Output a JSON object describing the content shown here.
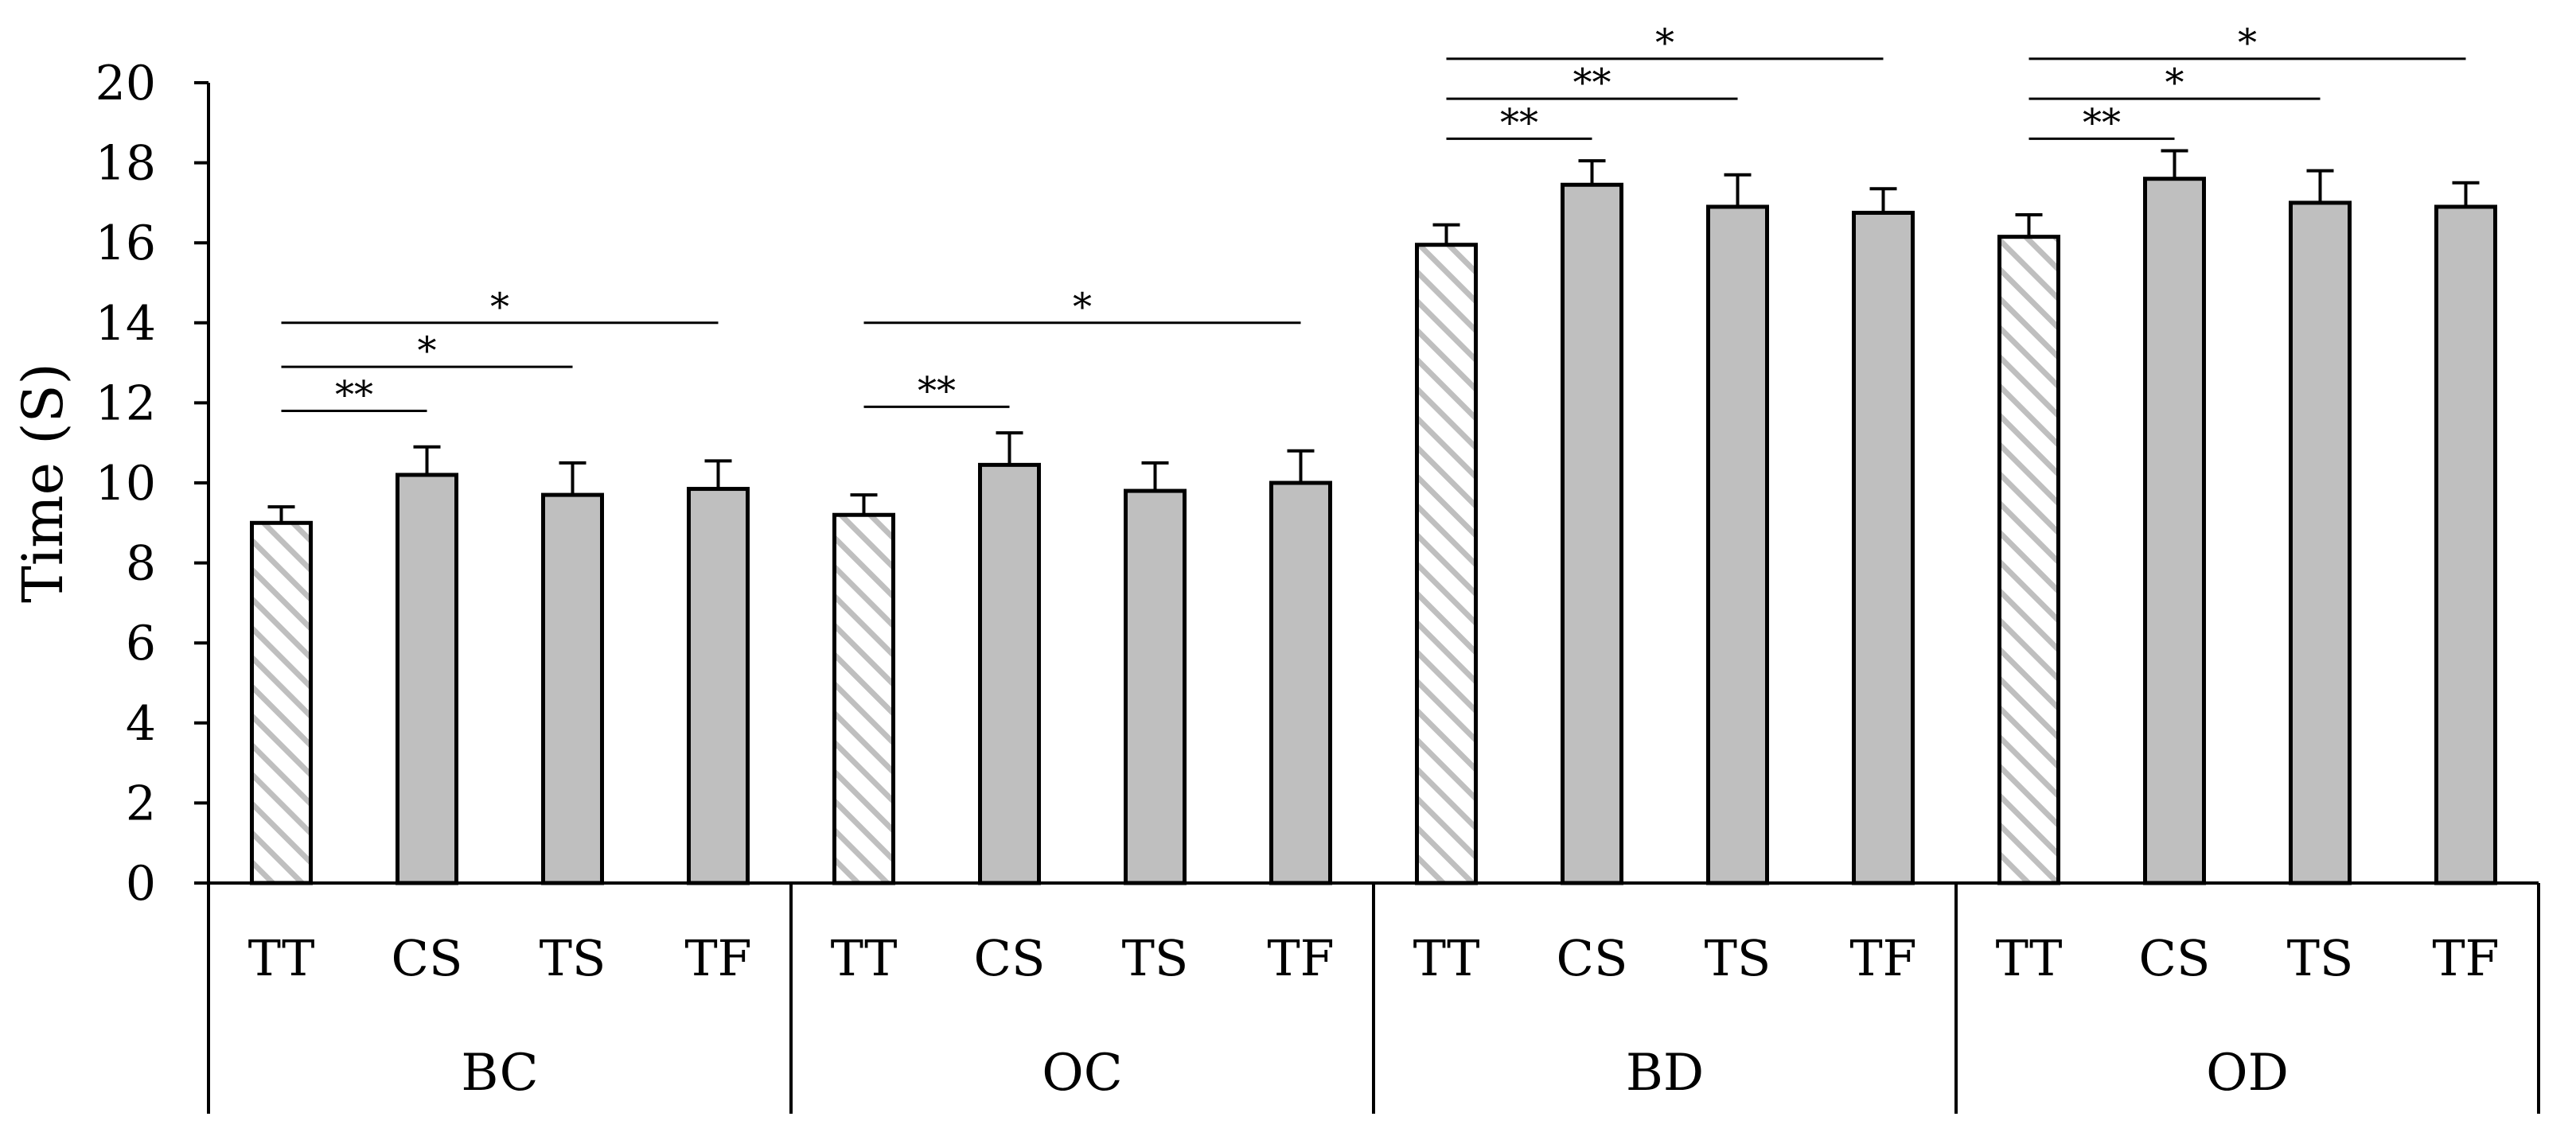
{
  "chart_data": {
    "type": "bar",
    "title": "",
    "xlabel": "",
    "ylabel": "Time (S)",
    "ylim": [
      0,
      20
    ],
    "yticks": [
      "0",
      "2",
      "4",
      "6",
      "8",
      "10",
      "12",
      "14",
      "16",
      "18",
      "20"
    ],
    "groups": [
      {
        "label": "BC",
        "bars": [
          {
            "label": "TT",
            "value": 9.0,
            "error": 0.4,
            "pattern": "hatched"
          },
          {
            "label": "CS",
            "value": 10.2,
            "error": 0.7,
            "pattern": "solid"
          },
          {
            "label": "TS",
            "value": 9.7,
            "error": 0.8,
            "pattern": "solid"
          },
          {
            "label": "TF",
            "value": 9.85,
            "error": 0.7,
            "pattern": "solid"
          }
        ],
        "significance": [
          {
            "from": "TT",
            "to": "CS",
            "y": 11.8,
            "mark": "**"
          },
          {
            "from": "TT",
            "to": "TS",
            "y": 12.9,
            "mark": "*"
          },
          {
            "from": "TT",
            "to": "TF",
            "y": 14.0,
            "mark": "*"
          }
        ]
      },
      {
        "label": "OC",
        "bars": [
          {
            "label": "TT",
            "value": 9.2,
            "error": 0.5,
            "pattern": "hatched"
          },
          {
            "label": "CS",
            "value": 10.45,
            "error": 0.8,
            "pattern": "solid"
          },
          {
            "label": "TS",
            "value": 9.8,
            "error": 0.7,
            "pattern": "solid"
          },
          {
            "label": "TF",
            "value": 10.0,
            "error": 0.8,
            "pattern": "solid"
          }
        ],
        "significance": [
          {
            "from": "TT",
            "to": "CS",
            "y": 11.9,
            "mark": "**"
          },
          {
            "from": "TT",
            "to": "TF",
            "y": 14.0,
            "mark": "*"
          }
        ]
      },
      {
        "label": "BD",
        "bars": [
          {
            "label": "TT",
            "value": 15.95,
            "error": 0.5,
            "pattern": "hatched"
          },
          {
            "label": "CS",
            "value": 17.45,
            "error": 0.6,
            "pattern": "solid"
          },
          {
            "label": "TS",
            "value": 16.9,
            "error": 0.8,
            "pattern": "solid"
          },
          {
            "label": "TF",
            "value": 16.75,
            "error": 0.6,
            "pattern": "solid"
          }
        ],
        "significance": [
          {
            "from": "TT",
            "to": "CS",
            "y": 18.6,
            "mark": "**"
          },
          {
            "from": "TT",
            "to": "TS",
            "y": 19.6,
            "mark": "**"
          },
          {
            "from": "TT",
            "to": "TF",
            "y": 20.6,
            "mark": "*"
          }
        ]
      },
      {
        "label": "OD",
        "bars": [
          {
            "label": "TT",
            "value": 16.15,
            "error": 0.55,
            "pattern": "hatched"
          },
          {
            "label": "CS",
            "value": 17.6,
            "error": 0.7,
            "pattern": "solid"
          },
          {
            "label": "TS",
            "value": 17.0,
            "error": 0.8,
            "pattern": "solid"
          },
          {
            "label": "TF",
            "value": 16.9,
            "error": 0.6,
            "pattern": "solid"
          }
        ],
        "significance": [
          {
            "from": "TT",
            "to": "CS",
            "y": 18.6,
            "mark": "**"
          },
          {
            "from": "TT",
            "to": "TS",
            "y": 19.6,
            "mark": "*"
          },
          {
            "from": "TT",
            "to": "TF",
            "y": 20.6,
            "mark": "*"
          }
        ]
      }
    ],
    "colors": {
      "bar_fill": "#bfbfbf",
      "hatch_stroke": "#bfbfbf",
      "outline": "#000000"
    }
  }
}
